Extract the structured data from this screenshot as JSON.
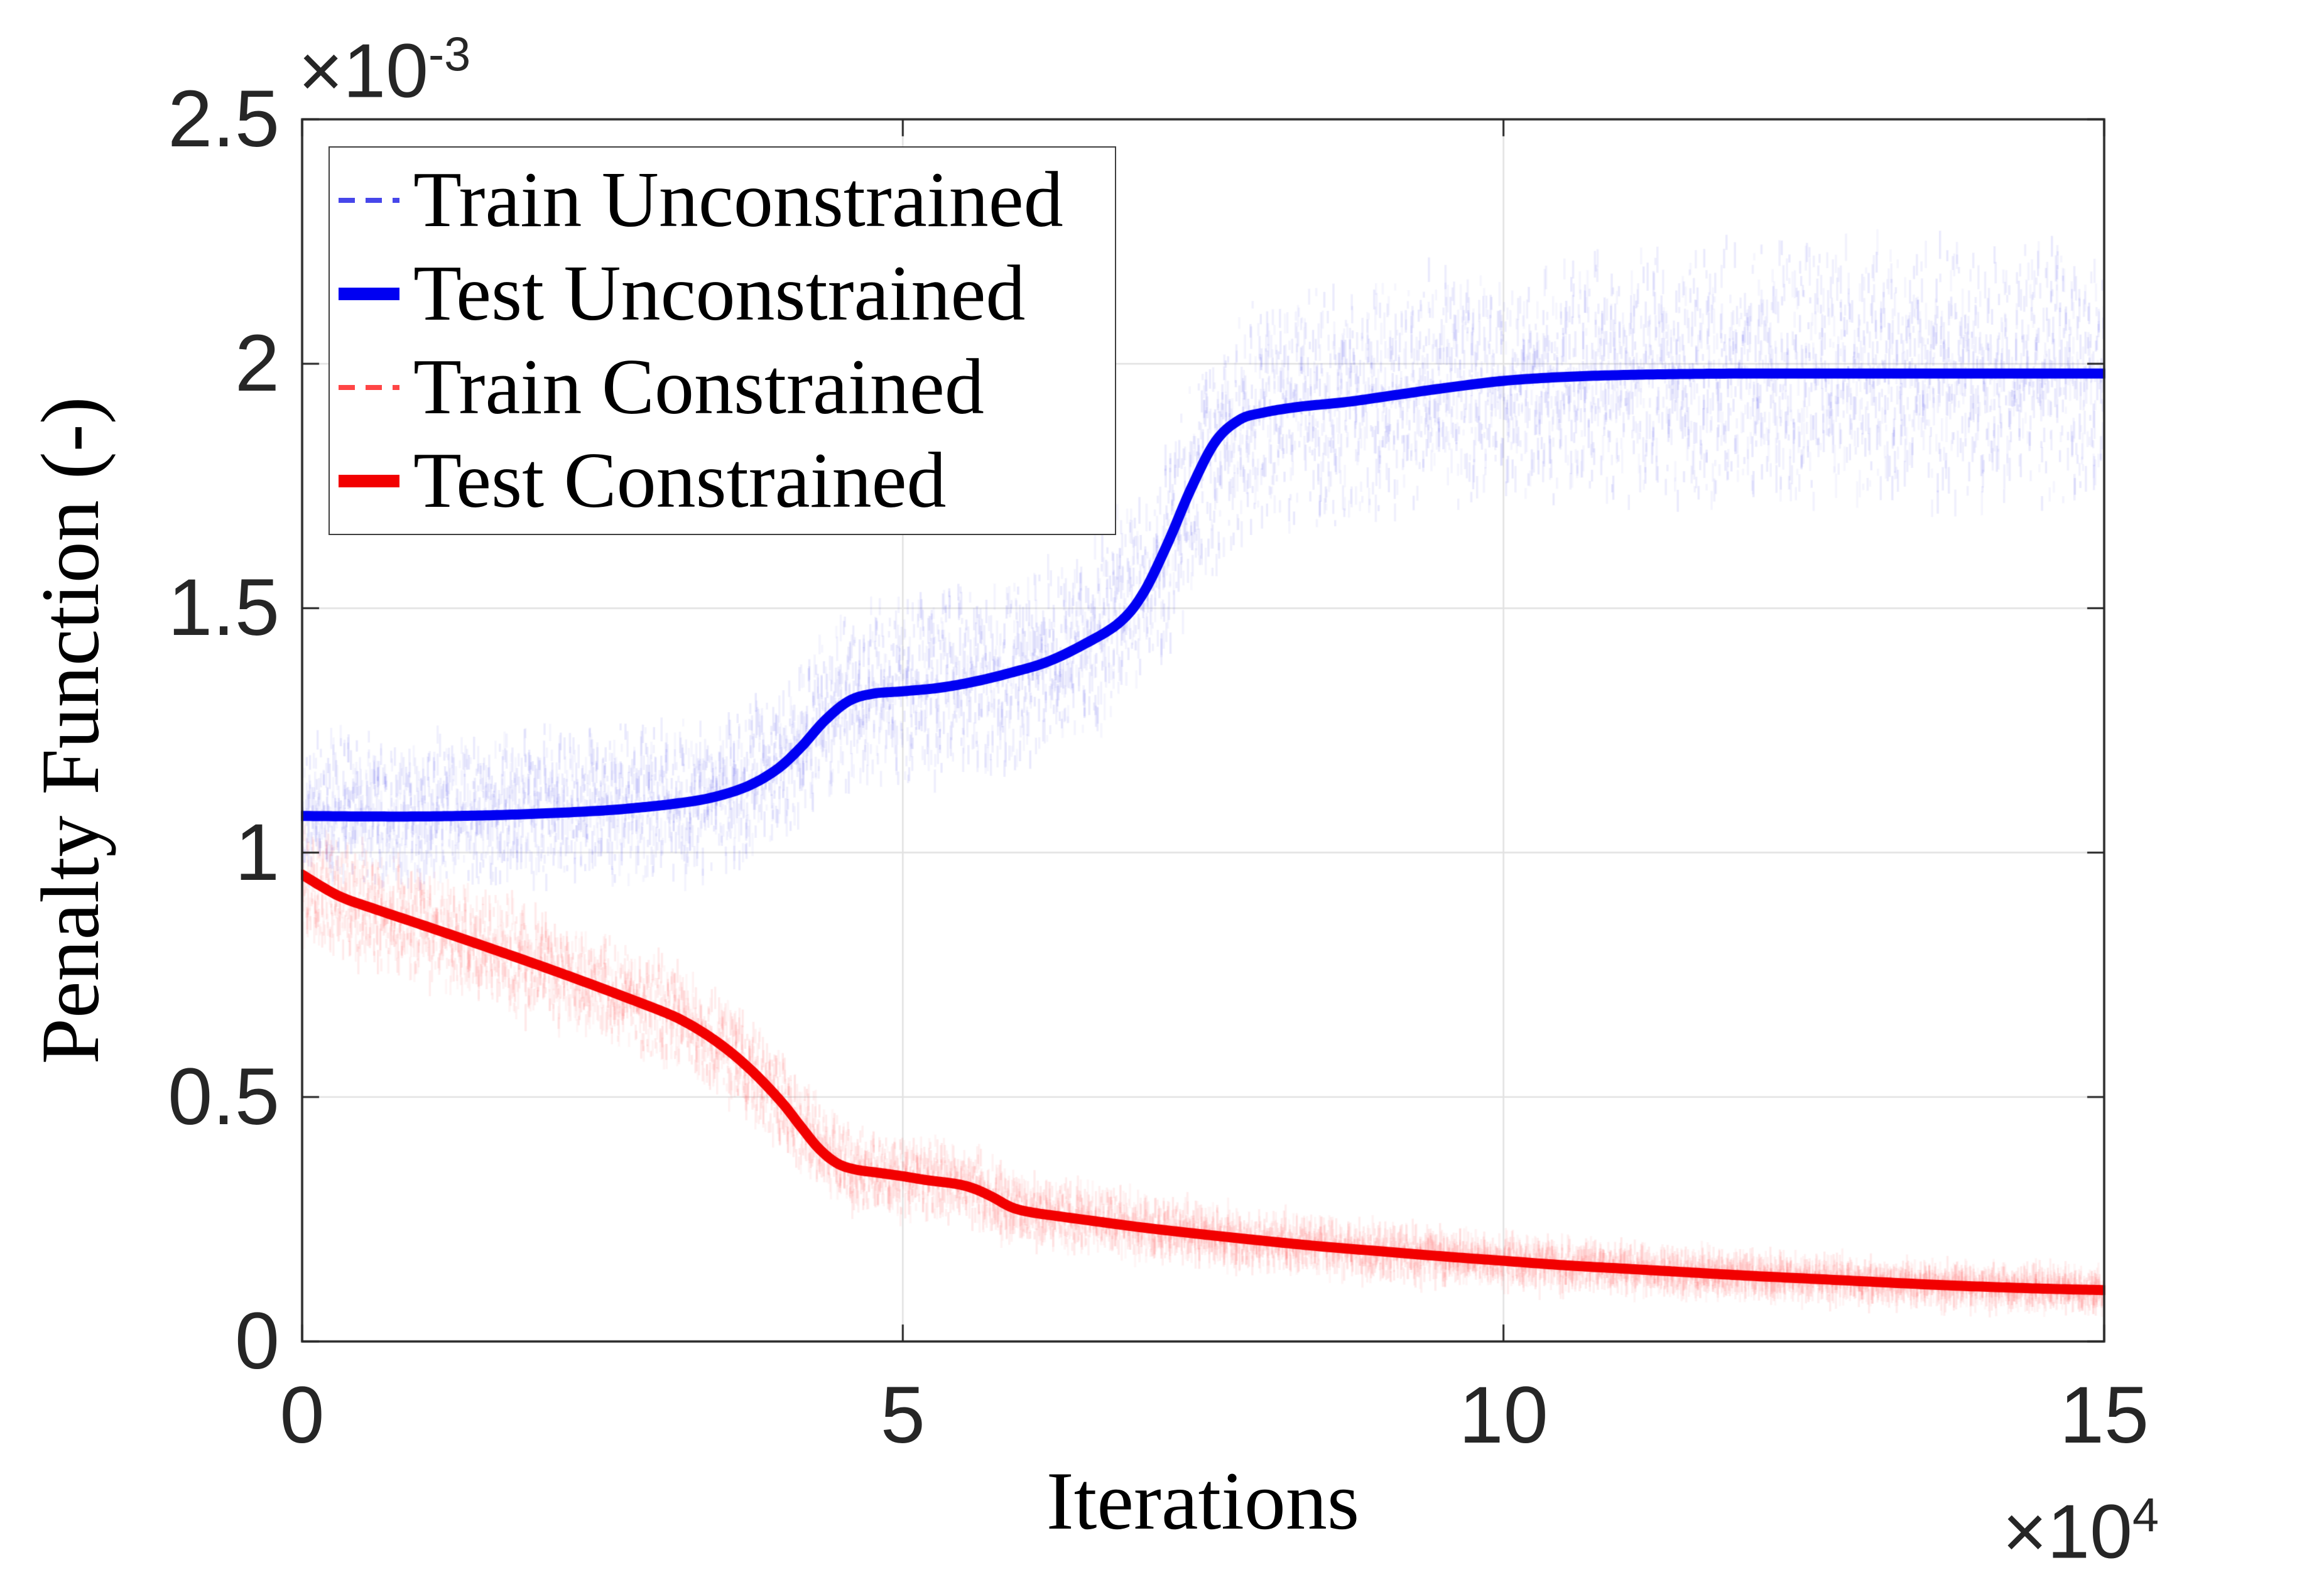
{
  "axes": {
    "xlabel": "Iterations",
    "ylabel": "Penalty Function (-)",
    "x_tick_labels": [
      "0",
      "5",
      "10",
      "15"
    ],
    "y_tick_labels": [
      "0",
      "0.5",
      "1",
      "1.5",
      "2",
      "2.5"
    ],
    "x_exp_base": "×10",
    "x_exp_power": "4",
    "y_exp_base": "×10",
    "y_exp_power": "-3",
    "axis_color": "#262626",
    "grid_color": "#E2E2E2",
    "tick_label_color": "#262626",
    "background": "#FFFFFF"
  },
  "legend": {
    "position": "top-left",
    "border_color": "#3F3F3F",
    "background": "#FFFFFF"
  },
  "chart_data": {
    "type": "line",
    "title": "",
    "xlabel": "Iterations",
    "ylabel": "Penalty Function (-)",
    "x_units_note": "x values in units of 1e4 iterations",
    "y_units_note": "y values in units of 1e-3",
    "xlim": [
      0,
      15
    ],
    "ylim": [
      0,
      2.5
    ],
    "x_ticks": [
      0,
      5,
      10,
      15
    ],
    "y_ticks": [
      0,
      0.5,
      1,
      1.5,
      2,
      2.5
    ],
    "grid": true,
    "legend_position": "top-left",
    "series": [
      {
        "name": "Train Unconstrained",
        "role": "noise-band",
        "line_style": "dashed",
        "color": "#4646EA",
        "seed": 1337,
        "x": [
          0,
          1,
          2,
          3,
          3.5,
          4,
          4.5,
          5,
          5.5,
          6,
          6.5,
          7,
          7.5,
          8,
          9,
          10,
          11,
          12,
          13,
          14,
          15
        ],
        "center": [
          1.09,
          1.09,
          1.095,
          1.105,
          1.125,
          1.185,
          1.315,
          1.335,
          1.345,
          1.378,
          1.43,
          1.53,
          1.77,
          1.9,
          1.936,
          1.965,
          1.977,
          1.98,
          1.98,
          1.98,
          1.98
        ],
        "halfwidth": [
          0.16,
          0.16,
          0.165,
          0.17,
          0.175,
          0.18,
          0.2,
          0.21,
          0.21,
          0.215,
          0.22,
          0.23,
          0.24,
          0.25,
          0.26,
          0.27,
          0.275,
          0.28,
          0.28,
          0.28,
          0.28
        ]
      },
      {
        "name": "Test Unconstrained",
        "role": "line",
        "line_style": "solid",
        "color": "#0000F2",
        "width": 16,
        "x": [
          0,
          0.5,
          1,
          1.5,
          2,
          2.5,
          2.8,
          3.1,
          3.4,
          3.7,
          3.95,
          4.15,
          4.35,
          4.55,
          4.75,
          5,
          5.3,
          5.6,
          5.9,
          6.2,
          6.5,
          6.8,
          7,
          7.2,
          7.4,
          7.6,
          7.8,
          8,
          8.3,
          8.7,
          9.1,
          9.5,
          10,
          10.5,
          11,
          11.5,
          12,
          13,
          14,
          15
        ],
        "y": [
          1.075,
          1.074,
          1.074,
          1.076,
          1.08,
          1.086,
          1.092,
          1.1,
          1.112,
          1.135,
          1.17,
          1.215,
          1.27,
          1.31,
          1.325,
          1.33,
          1.337,
          1.35,
          1.368,
          1.39,
          1.425,
          1.47,
          1.53,
          1.63,
          1.745,
          1.84,
          1.885,
          1.9,
          1.912,
          1.922,
          1.936,
          1.95,
          1.965,
          1.973,
          1.977,
          1.979,
          1.98,
          1.98,
          1.98,
          1.98
        ]
      },
      {
        "name": "Train Constrained",
        "role": "noise-band",
        "line_style": "dashed",
        "color": "#FF4545",
        "seed": 7331,
        "x": [
          0,
          1,
          2,
          3,
          3.5,
          4,
          4.5,
          5,
          5.5,
          6,
          6.5,
          7,
          7.5,
          8,
          9,
          10,
          11,
          12,
          13,
          14,
          15
        ],
        "center": [
          0.93,
          0.85,
          0.765,
          0.675,
          0.6,
          0.49,
          0.358,
          0.338,
          0.325,
          0.268,
          0.25,
          0.233,
          0.219,
          0.206,
          0.184,
          0.165,
          0.149,
          0.135,
          0.123,
          0.112,
          0.105
        ],
        "halfwidth": [
          0.13,
          0.125,
          0.12,
          0.115,
          0.11,
          0.1,
          0.09,
          0.085,
          0.08,
          0.075,
          0.07,
          0.065,
          0.062,
          0.058,
          0.054,
          0.05,
          0.047,
          0.044,
          0.042,
          0.041,
          0.04
        ]
      },
      {
        "name": "Test Constrained",
        "role": "line",
        "line_style": "solid",
        "color": "#F20000",
        "width": 16,
        "x": [
          0,
          0.3,
          0.6,
          1,
          1.5,
          2,
          2.5,
          3,
          3.2,
          3.4,
          3.6,
          3.8,
          4,
          4.15,
          4.3,
          4.45,
          4.6,
          4.8,
          5,
          5.2,
          5.45,
          5.6,
          5.75,
          5.9,
          6.05,
          6.3,
          6.6,
          7,
          7.5,
          8,
          8.5,
          9,
          9.5,
          10,
          10.5,
          11,
          11.5,
          12,
          12.5,
          13,
          13.5,
          14,
          14.5,
          15
        ],
        "y": [
          0.955,
          0.912,
          0.885,
          0.852,
          0.81,
          0.767,
          0.722,
          0.675,
          0.652,
          0.622,
          0.585,
          0.54,
          0.487,
          0.44,
          0.395,
          0.365,
          0.352,
          0.345,
          0.338,
          0.33,
          0.322,
          0.312,
          0.295,
          0.275,
          0.265,
          0.256,
          0.246,
          0.233,
          0.219,
          0.206,
          0.194,
          0.184,
          0.174,
          0.165,
          0.156,
          0.149,
          0.142,
          0.135,
          0.129,
          0.123,
          0.117,
          0.112,
          0.108,
          0.105
        ]
      }
    ]
  }
}
